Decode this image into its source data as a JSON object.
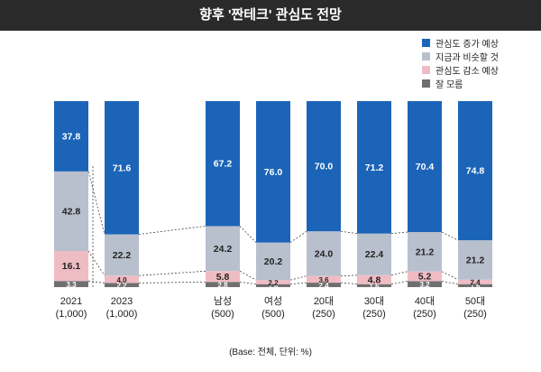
{
  "title": "향후 '짠테크' 관심도 전망",
  "base_note": "(Base: 전체, 단위: %)",
  "colors": {
    "increase": "#1c64b8",
    "similar": "#b8c0cd",
    "decrease": "#f0bcc4",
    "unknown": "#6f6f6f",
    "title_bg": "#2a2a2a"
  },
  "chart_data": {
    "type": "bar",
    "stacked": true,
    "ylim": [
      0,
      100
    ],
    "categories": [
      {
        "label": "2021",
        "base": "(1,000)"
      },
      {
        "label": "2023",
        "base": "(1,000)"
      },
      {
        "label": "남성",
        "base": "(500)"
      },
      {
        "label": "여성",
        "base": "(500)"
      },
      {
        "label": "20대",
        "base": "(250)"
      },
      {
        "label": "30대",
        "base": "(250)"
      },
      {
        "label": "40대",
        "base": "(250)"
      },
      {
        "label": "50대",
        "base": "(250)"
      }
    ],
    "series": [
      {
        "name": "잘 모름",
        "key": "unknown",
        "values": [
          3.3,
          2.2,
          2.8,
          1.6,
          2.4,
          1.6,
          3.2,
          1.6
        ]
      },
      {
        "name": "관심도 감소 예상",
        "key": "decrease",
        "values": [
          16.1,
          4.0,
          5.8,
          2.2,
          3.6,
          4.8,
          5.2,
          2.4
        ]
      },
      {
        "name": "지금과 비슷할 것",
        "key": "similar",
        "values": [
          42.8,
          22.2,
          24.2,
          20.2,
          24.0,
          22.4,
          21.2,
          21.2
        ]
      },
      {
        "name": "관심도 증가 예상",
        "key": "increase",
        "values": [
          37.8,
          71.6,
          67.2,
          76.0,
          70.0,
          71.2,
          70.4,
          74.8
        ]
      }
    ],
    "legend_order": [
      "관심도 증가 예상",
      "지금과 비슷할 것",
      "관심도 감소 예상",
      "잘 모름"
    ],
    "legend_position": "top-right"
  }
}
